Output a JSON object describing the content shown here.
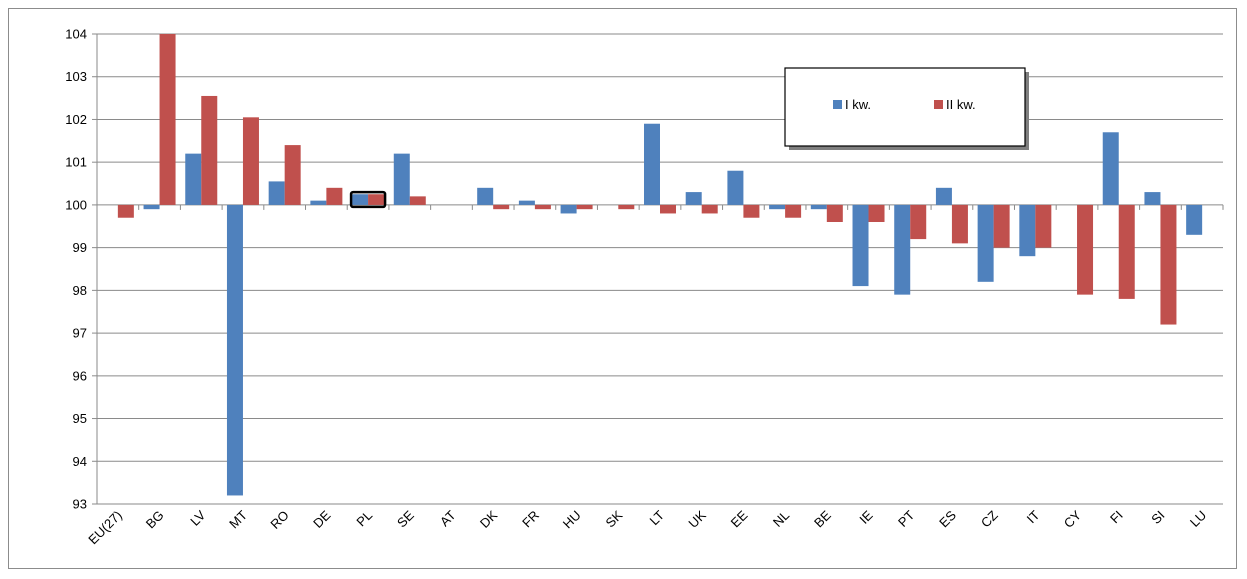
{
  "chart_data": {
    "type": "bar",
    "title": "",
    "xlabel": "",
    "ylabel": "",
    "ylim": [
      93,
      104
    ],
    "yticks": [
      93,
      94,
      95,
      96,
      97,
      98,
      99,
      100,
      101,
      102,
      103,
      104
    ],
    "baseline": 100,
    "grid": true,
    "legend_position": "top-right",
    "highlighted_category": "PL",
    "categories": [
      "EU(27)",
      "BG",
      "LV",
      "MT",
      "RO",
      "DE",
      "PL",
      "SE",
      "AT",
      "DK",
      "FR",
      "HU",
      "SK",
      "LT",
      "UK",
      "EE",
      "NL",
      "BE",
      "IE",
      "PT",
      "ES",
      "CZ",
      "IT",
      "CY",
      "FI",
      "SI",
      "LU"
    ],
    "series": [
      {
        "name": "I kw.",
        "color": "#4F81BD",
        "values": [
          null,
          99.9,
          101.2,
          93.2,
          100.55,
          100.1,
          100.25,
          101.2,
          null,
          100.4,
          100.1,
          99.8,
          null,
          101.9,
          100.3,
          100.8,
          99.9,
          99.9,
          98.1,
          97.9,
          100.4,
          98.2,
          98.8,
          null,
          101.7,
          100.3,
          99.3
        ]
      },
      {
        "name": "II kw.",
        "color": "#C0504D",
        "values": [
          99.7,
          104.0,
          102.55,
          102.05,
          101.4,
          100.4,
          100.25,
          100.2,
          null,
          99.9,
          99.9,
          99.9,
          99.9,
          99.8,
          99.8,
          99.7,
          99.7,
          99.6,
          99.6,
          99.2,
          99.1,
          99.0,
          99.0,
          97.9,
          97.8,
          97.2,
          null
        ]
      }
    ]
  }
}
